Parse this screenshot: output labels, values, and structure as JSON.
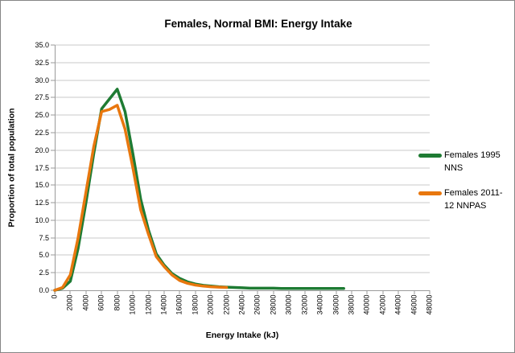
{
  "chart": {
    "title": "Females, Normal BMI: Energy Intake",
    "x_axis_title": "Energy Intake (kJ)",
    "y_axis_title": "Proportion of total population"
  },
  "legend": {
    "items": [
      {
        "label": "Females 1995 NNS",
        "lines": [
          "Females 1995",
          "NNS"
        ],
        "color": "#1e7b33"
      },
      {
        "label": "Females 2011-12 NNPAS",
        "lines": [
          "Females 2011-",
          "12 NNPAS"
        ],
        "color": "#e8770e"
      }
    ]
  },
  "axis_ticks": {
    "y_labels": [
      "0.0",
      "2.5",
      "5.0",
      "7.5",
      "10.0",
      "12.5",
      "15.0",
      "17.5",
      "20.0",
      "22.5",
      "25.0",
      "27.5",
      "30.0",
      "32.5",
      "35.0"
    ],
    "x_labels": [
      "0",
      "2000",
      "4000",
      "6000",
      "8000",
      "10000",
      "12000",
      "14000",
      "16000",
      "18000",
      "20000",
      "22000",
      "24000",
      "26000",
      "28000",
      "30000",
      "32000",
      "34000",
      "36000",
      "38000",
      "40000",
      "42000",
      "44000",
      "46000",
      "48000"
    ]
  },
  "colors": {
    "gridline": "#c9c9c9",
    "axis": "#9a9a9a",
    "border": "#868686",
    "background": "#ffffff",
    "series_green": "#1e7b33",
    "series_orange": "#e8770e"
  },
  "chart_data": {
    "type": "line",
    "title": "Females, Normal BMI: Energy Intake",
    "xlabel": "Energy Intake (kJ)",
    "ylabel": "Proportion of total population",
    "xlim": [
      0,
      48000
    ],
    "ylim": [
      0.0,
      35.0
    ],
    "x_tick_step": 2000,
    "y_tick_step": 2.5,
    "grid": true,
    "legend_position": "right",
    "series": [
      {
        "name": "Females 1995 NNS",
        "color": "#1e7b33",
        "x_start": 0,
        "x_step": 1000,
        "values": [
          0.0,
          0.3,
          1.3,
          6.0,
          12.5,
          19.5,
          25.9,
          27.3,
          28.7,
          25.5,
          19.5,
          13.0,
          8.6,
          5.2,
          3.6,
          2.4,
          1.7,
          1.2,
          0.9,
          0.7,
          0.6,
          0.5,
          0.45,
          0.4,
          0.35,
          0.3,
          0.3,
          0.3,
          0.3,
          0.25,
          0.25,
          0.25,
          0.25,
          0.25,
          0.25,
          0.25,
          0.25,
          0.25
        ]
      },
      {
        "name": "Females 2011-12 NNPAS",
        "color": "#e8770e",
        "x_start": 0,
        "x_step": 1000,
        "values": [
          0.0,
          0.4,
          2.2,
          7.5,
          14.0,
          20.5,
          25.5,
          25.8,
          26.4,
          23.0,
          17.5,
          11.5,
          8.0,
          4.8,
          3.4,
          2.2,
          1.4,
          1.0,
          0.75,
          0.6,
          0.5,
          0.45,
          0.4
        ]
      }
    ]
  }
}
